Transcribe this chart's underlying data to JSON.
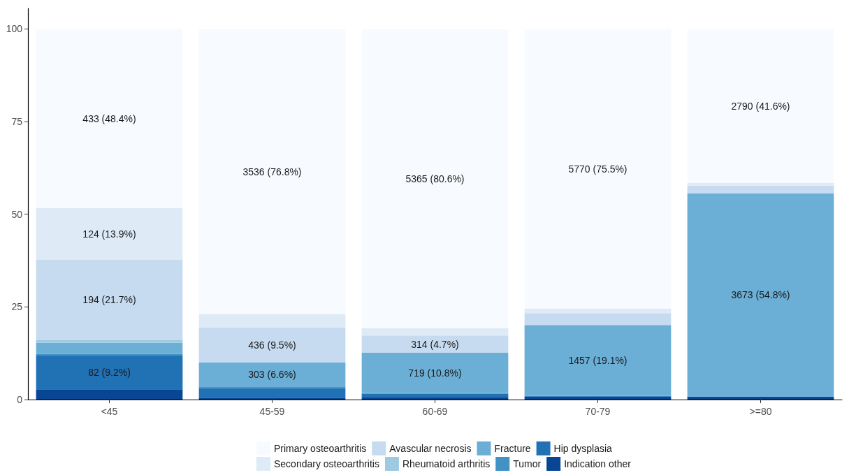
{
  "chart_data": {
    "type": "bar",
    "stacked": true,
    "categories": [
      "<45",
      "45-59",
      "60-69",
      "70-79",
      ">=80"
    ],
    "ylim": [
      0,
      105.5
    ],
    "yticks": [
      0,
      25,
      50,
      75,
      100
    ],
    "grid": false,
    "legend": "bottom",
    "series": [
      {
        "name": "Indication other",
        "color": "#084594",
        "values": [
          2.8,
          0.5,
          0.7,
          0.8,
          0.8
        ],
        "value_labels": [
          null,
          null,
          null,
          null,
          null
        ]
      },
      {
        "name": "Hip dysplasia",
        "color": "#2171b5",
        "values": [
          9.2,
          2.6,
          0.9,
          0.2,
          0
        ],
        "value_labels": [
          "82 (9.2%)",
          null,
          null,
          null,
          null
        ]
      },
      {
        "name": "Tumor",
        "color": "#4292c6",
        "values": [
          0.3,
          0.3,
          0.2,
          0,
          0
        ],
        "value_labels": [
          null,
          null,
          null,
          null,
          null
        ]
      },
      {
        "name": "Fracture",
        "color": "#6baed6",
        "values": [
          3.0,
          6.6,
          10.8,
          19.1,
          54.8
        ],
        "value_labels": [
          null,
          "303 (6.6%)",
          "719 (10.8%)",
          "1457 (19.1%)",
          "3673 (54.8%)"
        ]
      },
      {
        "name": "Rheumatoid arthritis",
        "color": "#9ecae1",
        "values": [
          0.7,
          null,
          null,
          0,
          0
        ],
        "value_labels": [
          null,
          null,
          null,
          null,
          null
        ]
      },
      {
        "name": "Avascular necrosis",
        "color": "#c6dbef",
        "values": [
          21.7,
          9.5,
          4.7,
          3.2,
          2.1
        ],
        "value_labels": [
          "194 (21.7%)",
          "436 (9.5%)",
          "314 (4.7%)",
          null,
          null
        ]
      },
      {
        "name": "Secondary osteoarthritis",
        "color": "#deebf7",
        "values": [
          13.9,
          3.6,
          2.0,
          1.2,
          0.7
        ],
        "value_labels": [
          "124 (13.9%)",
          null,
          null,
          null,
          null
        ]
      },
      {
        "name": "Primary osteoarthritis",
        "color": "#f7fbff",
        "values": [
          48.4,
          76.8,
          80.6,
          75.5,
          41.6
        ],
        "value_labels": [
          "433 (48.4%)",
          "3536 (76.8%)",
          "5365 (80.6%)",
          "5770 (75.5%)",
          "2790 (41.6%)"
        ]
      }
    ]
  }
}
